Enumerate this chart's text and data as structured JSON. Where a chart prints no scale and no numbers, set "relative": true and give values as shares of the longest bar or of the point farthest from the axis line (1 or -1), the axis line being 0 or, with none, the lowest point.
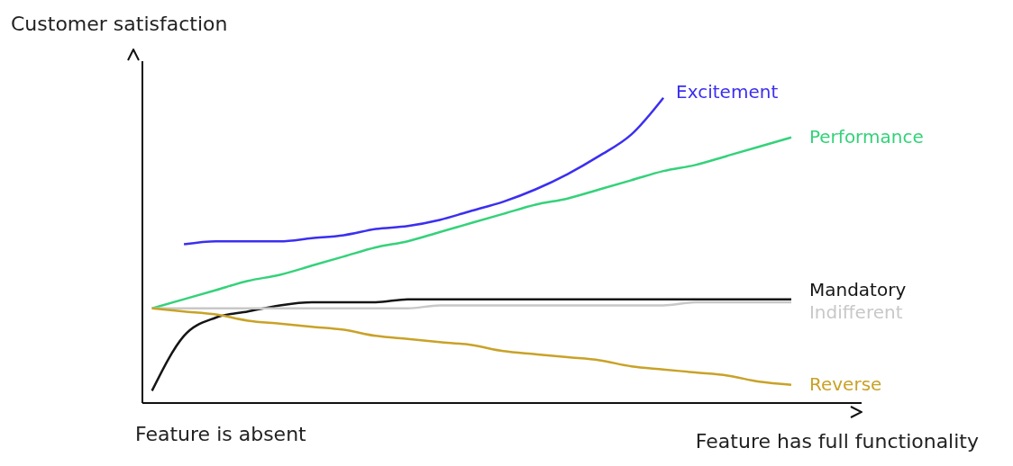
{
  "chart_data": {
    "type": "line",
    "relative": true,
    "ylabel": "Customer satisfaction",
    "xlabel": "Feature has full functionality",
    "annotations": [
      "Feature is absent"
    ],
    "categories": [
      null,
      null,
      null,
      null,
      null,
      null,
      null,
      null,
      null,
      null,
      null,
      null,
      null,
      null,
      null,
      null,
      null,
      null,
      null,
      null,
      null
    ],
    "grid": false,
    "legend": false,
    "marker": "none",
    "line_style": "solid",
    "series": [
      {
        "name": "Excitement",
        "color": "#3b2ff0",
        "values": [
          null,
          0.52,
          0.53,
          0.53,
          0.53,
          0.54,
          0.55,
          0.57,
          0.58,
          0.6,
          0.63,
          0.66,
          0.7,
          0.75,
          0.81,
          0.88,
          1.0,
          null,
          null,
          null,
          null
        ]
      },
      {
        "name": "Performance",
        "color": "#34d27a",
        "values": [
          0.31,
          0.34,
          0.37,
          0.4,
          0.42,
          0.45,
          0.48,
          0.51,
          0.53,
          0.56,
          0.59,
          0.62,
          0.65,
          0.67,
          0.7,
          0.73,
          0.76,
          0.78,
          0.81,
          0.84,
          0.87
        ]
      },
      {
        "name": "Mandatory",
        "color": "#151515",
        "values": [
          0.04,
          0.22,
          0.28,
          0.3,
          0.32,
          0.33,
          0.33,
          0.33,
          0.34,
          0.34,
          0.34,
          0.34,
          0.34,
          0.34,
          0.34,
          0.34,
          0.34,
          0.34,
          0.34,
          0.34,
          0.34
        ]
      },
      {
        "name": "Indifferent",
        "color": "#c8c8c8",
        "values": [
          0.31,
          0.31,
          0.31,
          0.31,
          0.31,
          0.31,
          0.31,
          0.31,
          0.31,
          0.32,
          0.32,
          0.32,
          0.32,
          0.32,
          0.32,
          0.32,
          0.32,
          0.33,
          0.33,
          0.33,
          0.33
        ]
      },
      {
        "name": "Reverse",
        "color": "#c9a227",
        "values": [
          0.31,
          0.3,
          0.29,
          0.27,
          0.26,
          0.25,
          0.24,
          0.22,
          0.21,
          0.2,
          0.19,
          0.17,
          0.16,
          0.15,
          0.14,
          0.12,
          0.11,
          0.1,
          0.09,
          0.07,
          0.06
        ]
      }
    ]
  }
}
